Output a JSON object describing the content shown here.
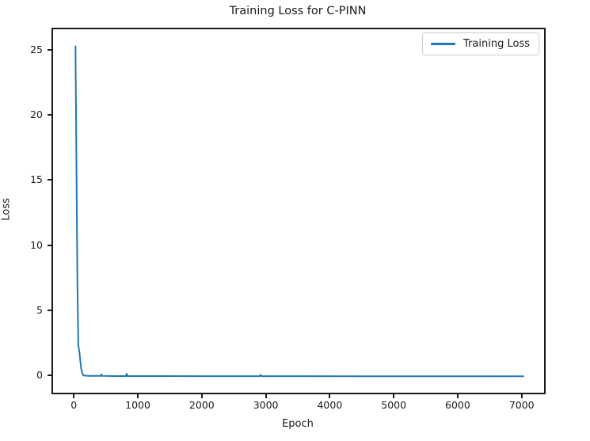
{
  "chart_data": {
    "type": "line",
    "title": "Training Loss for C-PINN",
    "xlabel": "Epoch",
    "ylabel": "Loss",
    "xlim": [
      -350,
      7350
    ],
    "ylim": [
      -1.33,
      26.7
    ],
    "x_ticks": [
      0,
      1000,
      2000,
      3000,
      4000,
      5000,
      6000,
      7000
    ],
    "y_ticks": [
      0,
      5,
      10,
      15,
      20,
      25
    ],
    "grid": false,
    "legend": {
      "position": "upper-right",
      "entries": [
        "Training Loss"
      ]
    },
    "series": [
      {
        "name": "Training Loss",
        "color": "#1f77b4",
        "line_width": 2,
        "points": [
          [
            0,
            25.4
          ],
          [
            15,
            16.5
          ],
          [
            30,
            7.5
          ],
          [
            45,
            2.4
          ],
          [
            60,
            2.0
          ],
          [
            75,
            1.3
          ],
          [
            90,
            0.65
          ],
          [
            105,
            0.3
          ],
          [
            125,
            0.12
          ],
          [
            200,
            0.08
          ],
          [
            300,
            0.08
          ],
          [
            395,
            0.08
          ],
          [
            405,
            0.2
          ],
          [
            415,
            0.08
          ],
          [
            600,
            0.07
          ],
          [
            790,
            0.07
          ],
          [
            800,
            0.25
          ],
          [
            812,
            0.07
          ],
          [
            1200,
            0.07
          ],
          [
            2000,
            0.06
          ],
          [
            2880,
            0.06
          ],
          [
            2895,
            0.16
          ],
          [
            2910,
            0.06
          ],
          [
            3500,
            0.06
          ],
          [
            4500,
            0.05
          ],
          [
            5500,
            0.05
          ],
          [
            6500,
            0.05
          ],
          [
            7000,
            0.05
          ]
        ]
      }
    ]
  }
}
